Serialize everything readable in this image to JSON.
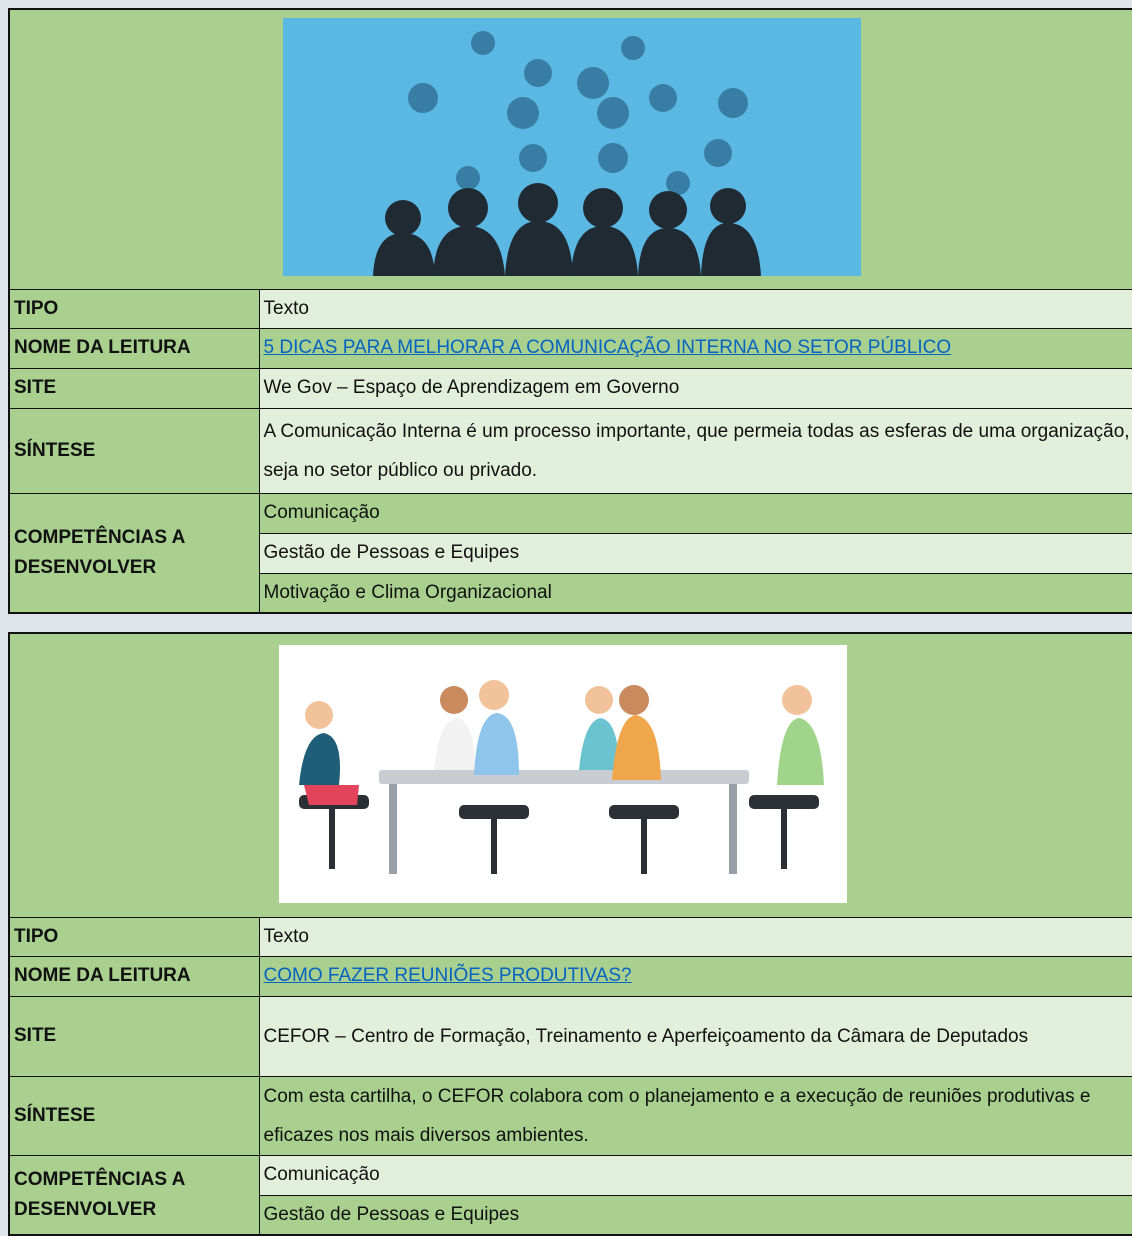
{
  "cards": [
    {
      "labels": {
        "tipo": "TIPO",
        "nome": "NOME DA LEITURA",
        "site": "SITE",
        "sintese": "SÍNTESE",
        "competencias": "COMPETÊNCIAS A DESENVOLVER"
      },
      "tipo": "Texto",
      "nome_da_leitura": "5 DICAS PARA MELHORAR A COMUNICAÇÃO INTERNA NO SETOR PÚBLICO",
      "site": "We Gov – Espaço de Aprendizagem em Governo",
      "sintese": "A Comunicação Interna é um processo importante, que permeia todas as esferas de uma organização, seja no setor público ou privado.",
      "competencias": [
        "Comunicação",
        "Gestão de Pessoas e Equipes",
        "Motivação e Clima Organizacional"
      ]
    },
    {
      "labels": {
        "tipo": "TIPO",
        "nome": "NOME DA LEITURA",
        "site": "SITE",
        "sintese": "SÍNTESE",
        "competencias": "COMPETÊNCIAS A DESENVOLVER"
      },
      "tipo": "Texto",
      "nome_da_leitura": "COMO FAZER REUNIÕES PRODUTIVAS?",
      "site": "CEFOR – Centro de Formação, Treinamento e Aperfeiçoamento da Câmara de Deputados",
      "sintese": "Com esta cartilha, o CEFOR colabora com o planejamento e a execução de reuniões produtivas e eficazes nos mais diversos ambientes.",
      "competencias": [
        "Comunicação",
        "Gestão de Pessoas e Equipes"
      ]
    }
  ]
}
